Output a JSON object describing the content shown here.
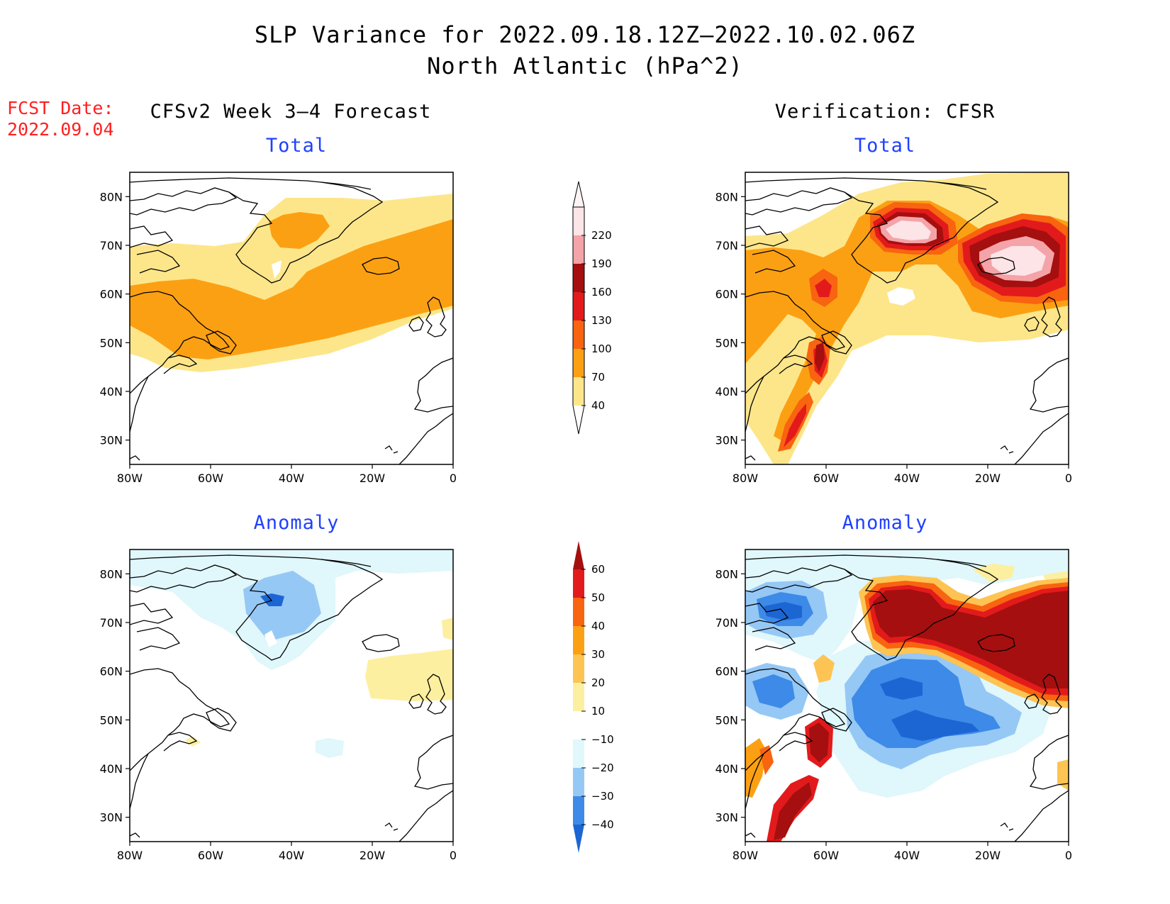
{
  "header": {
    "title_line1": "SLP Variance for 2022.09.18.12Z–2022.10.02.06Z",
    "title_line2": "North Atlantic (hPa^2)"
  },
  "fcst_date": {
    "label": "FCST Date:",
    "value": "2022.09.04"
  },
  "columns": {
    "forecast_title": "CFSv2 Week 3–4 Forecast",
    "verification_title": "Verification: CFSR"
  },
  "panels": [
    {
      "id": "fcst-total",
      "subtitle": "Total"
    },
    {
      "id": "verif-total",
      "subtitle": "Total"
    },
    {
      "id": "fcst-anomaly",
      "subtitle": "Anomaly"
    },
    {
      "id": "verif-anomaly",
      "subtitle": "Anomaly"
    }
  ],
  "axes": {
    "lon_ticks": [
      "80W",
      "60W",
      "40W",
      "20W",
      "0"
    ],
    "lat_ticks": [
      "80N",
      "70N",
      "60N",
      "50N",
      "40N",
      "30N"
    ],
    "lon_range": [
      -80,
      0
    ],
    "lat_range": [
      25,
      85
    ]
  },
  "colorbars": {
    "total": {
      "levels": [
        "40",
        "70",
        "100",
        "130",
        "160",
        "190",
        "220"
      ],
      "colors": [
        "#fde68a",
        "#fca013",
        "#f86410",
        "#e31a1c",
        "#a50f0f",
        "#f4a3a8",
        "#fde4e6"
      ]
    },
    "anomaly": {
      "levels": [
        "−40",
        "−30",
        "−20",
        "−10",
        "10",
        "20",
        "30",
        "40",
        "50",
        "60"
      ],
      "colors": [
        "#1c66d4",
        "#3d8ae8",
        "#96c8f5",
        "#e0f7fb",
        "#ffffff",
        "#fdefa0",
        "#fdc453",
        "#fca013",
        "#f86410",
        "#e31a1c",
        "#a50f0f"
      ]
    }
  }
}
